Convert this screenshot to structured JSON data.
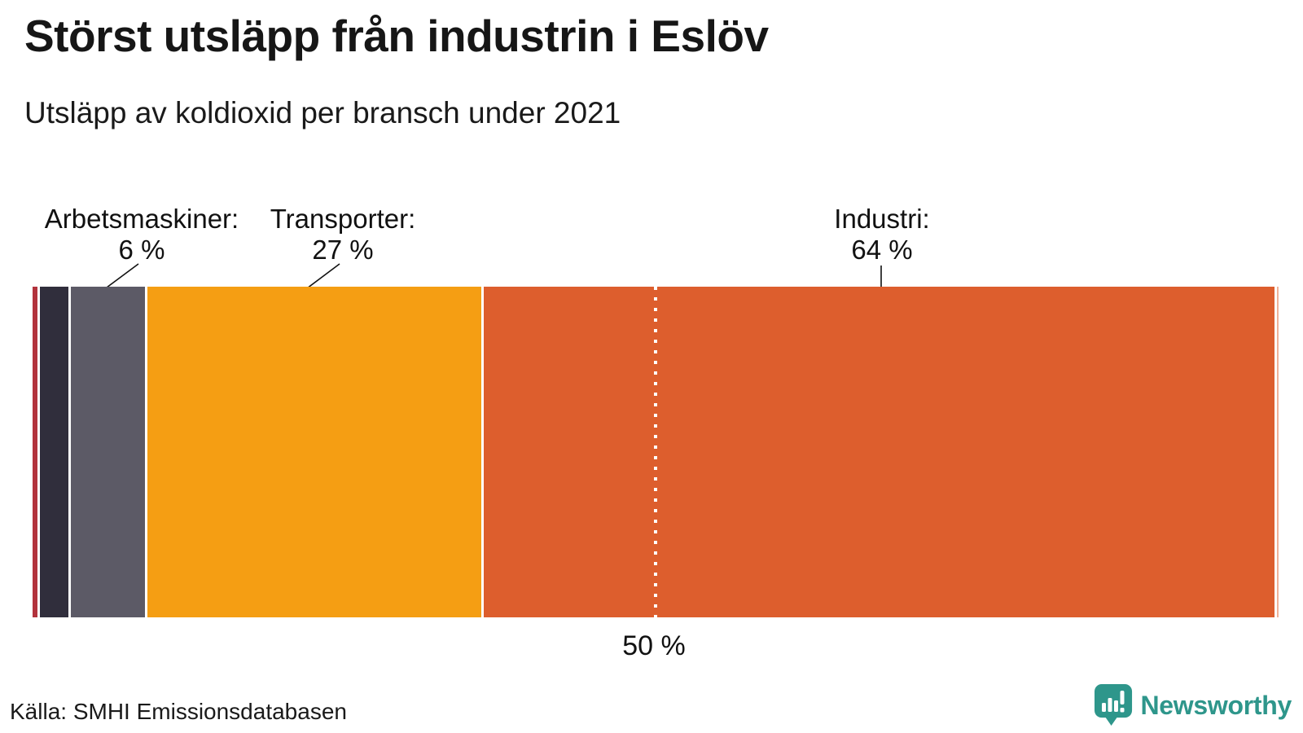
{
  "chart_data": {
    "type": "bar",
    "orientation": "horizontal-stacked",
    "title": "Störst utsläpp från industrin i Eslöv",
    "subtitle": "Utsläpp av koldioxid per bransch under 2021",
    "unit": "%",
    "segments": [
      {
        "label": "",
        "value": 0.4,
        "color": "#b2323c"
      },
      {
        "label": "",
        "value": 2.3,
        "color": "#302e3c"
      },
      {
        "label": "Arbetsmaskiner",
        "value": 6,
        "color": "#5c5a66"
      },
      {
        "label": "Transporter",
        "value": 27,
        "color": "#f59e13"
      },
      {
        "label": "Industri",
        "value": 64,
        "color": "#dd5e2d"
      },
      {
        "label": "",
        "value": 0.15,
        "color": "#f0b198"
      }
    ],
    "annotations": [
      {
        "text": "Arbetsmaskiner:",
        "value_text": "6 %"
      },
      {
        "text": "Transporter:",
        "value_text": "27 %"
      },
      {
        "text": "Industri:",
        "value_text": "64 %"
      }
    ],
    "reference_line": {
      "position": 50,
      "label": "50 %"
    },
    "legend": "none",
    "grid": false
  },
  "source": "Källa: SMHI Emissionsdatabasen",
  "branding": {
    "name": "Newsworthy",
    "color": "#2e968b",
    "icon": "speech-bubble-bar-chart-icon"
  }
}
